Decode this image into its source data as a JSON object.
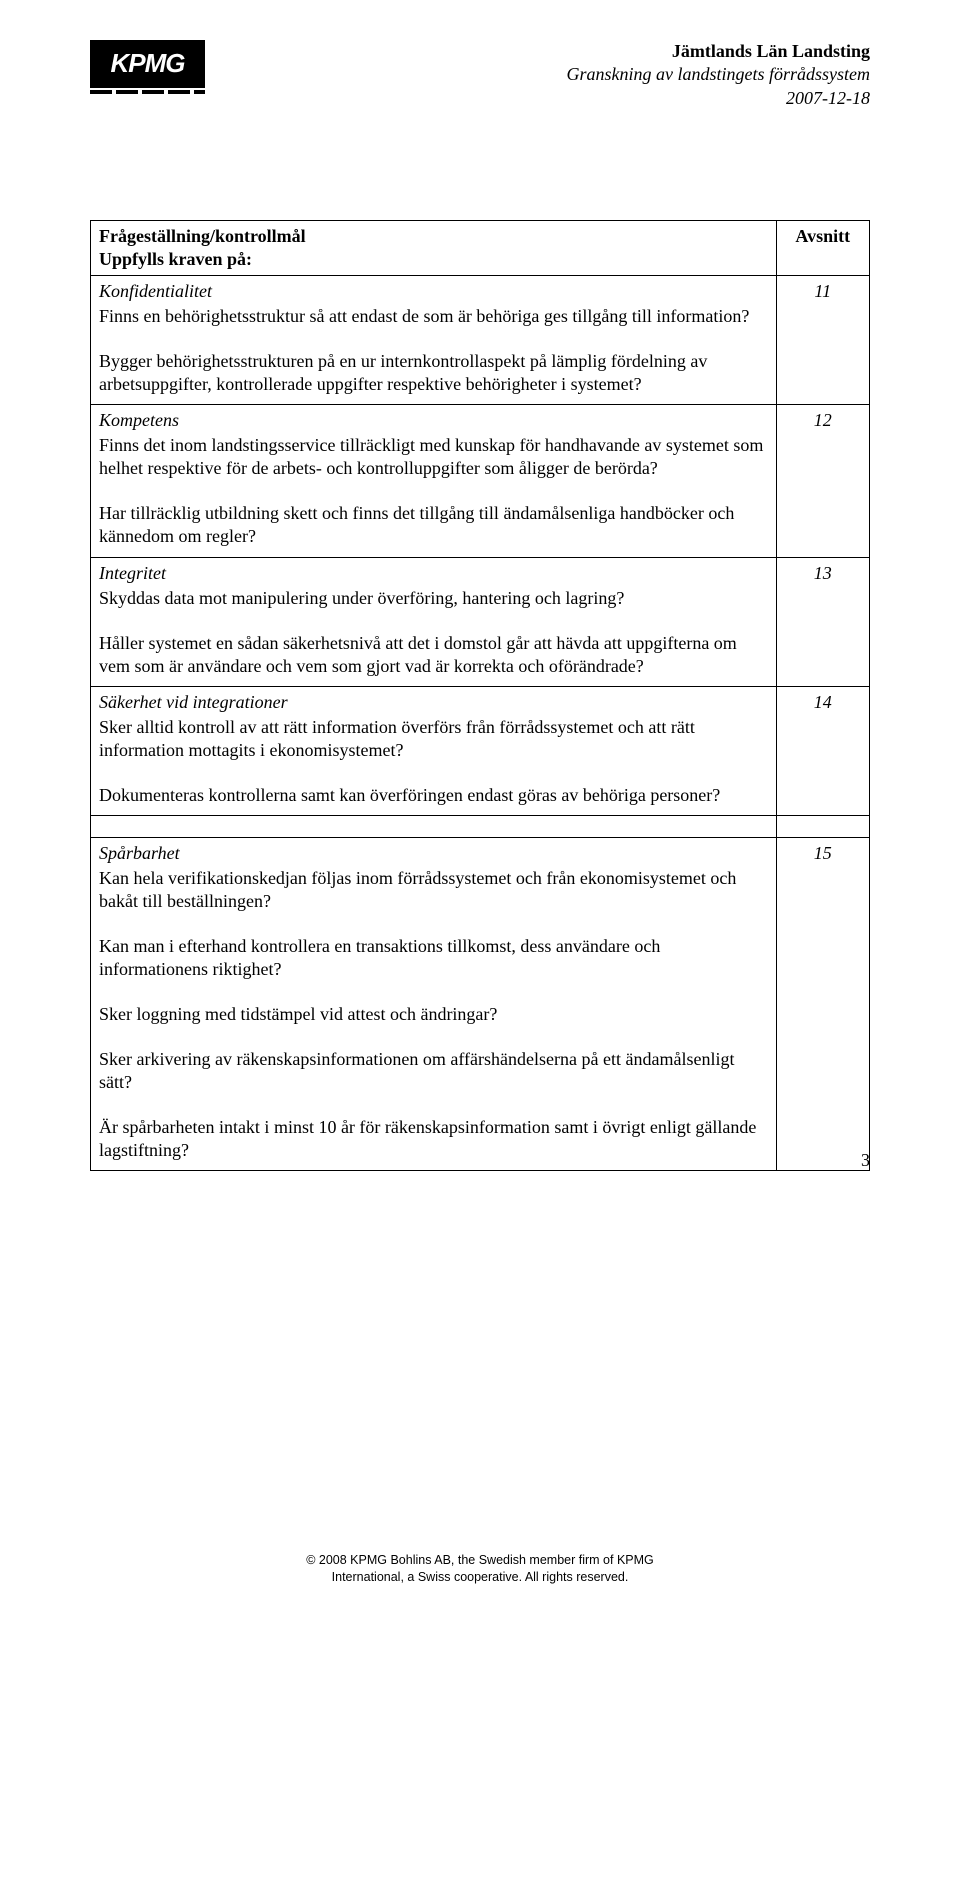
{
  "header": {
    "logo_text": "KPMG",
    "org": "Jämtlands Län Landsting",
    "subtitle": "Granskning av landstingets förrådssystem",
    "date": "2007-12-18"
  },
  "table": {
    "head_left_l1": "Frågeställning/kontrollmål",
    "head_left_l2": "Uppfylls kraven på:",
    "head_right": "Avsnitt",
    "rows": [
      {
        "title": "Konfidentialitet",
        "num": "11",
        "paras": [
          "Finns en behörighetsstruktur så att endast de som är behöriga ges tillgång till information?",
          "Bygger behörighetsstrukturen på en ur internkontrollaspekt på lämplig fördelning av arbetsuppgifter, kontrollerade uppgifter respektive behörigheter i systemet?"
        ]
      },
      {
        "title": "Kompetens",
        "num": "12",
        "paras": [
          "Finns det inom landstingsservice tillräckligt med kunskap för handhavande av systemet som helhet respektive för de arbets- och kontrolluppgifter som åligger de berörda?",
          "Har tillräcklig utbildning skett och finns det tillgång till ändamålsenliga handböcker och kännedom om regler?"
        ]
      },
      {
        "title": "Integritet",
        "num": "13",
        "paras": [
          "Skyddas data mot manipulering under överföring, hantering och lagring?",
          "Håller systemet en sådan säkerhetsnivå att det i domstol går att hävda att uppgifterna om vem som är användare och vem som gjort vad är korrekta och oförändrade?"
        ]
      },
      {
        "title": "Säkerhet vid integrationer",
        "num": "14",
        "paras": [
          "Sker alltid kontroll av att rätt information överförs från förrådssystemet och att rätt information mottagits i ekonomisystemet?",
          "Dokumenteras kontrollerna samt kan överföringen endast göras av behöriga personer?"
        ]
      },
      {
        "title": "Spårbarhet",
        "num": "15",
        "paras": [
          "Kan hela verifikationskedjan följas inom förrådssystemet och från ekonomisystemet och bakåt till beställningen?",
          "Kan man i efterhand kontrollera en transaktions tillkomst, dess användare och informationens riktighet?",
          "Sker loggning med tidstämpel vid attest och ändringar?",
          "Sker arkivering av räkenskapsinformationen om affärshändelserna på ett ändamålsenligt sätt?",
          "Är spårbarheten intakt i minst 10 år för räkenskapsinformation samt i övrigt enligt gällande lagstiftning?"
        ]
      }
    ]
  },
  "footer": {
    "line1": "© 2008 KPMG Bohlins AB, the Swedish member firm of KPMG",
    "line2": "International, a Swiss cooperative. All rights reserved.",
    "page": "3"
  }
}
